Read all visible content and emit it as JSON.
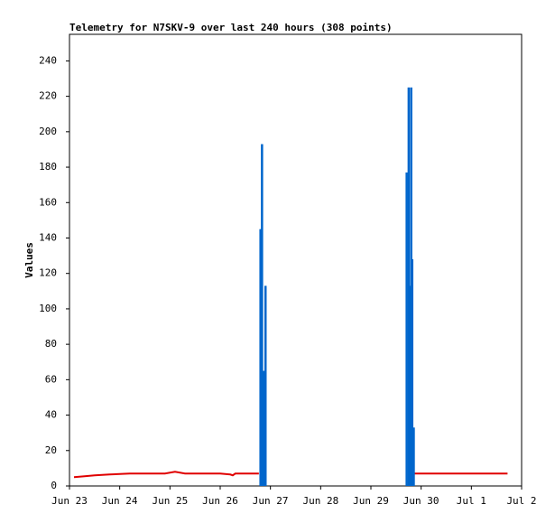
{
  "chart_data": {
    "type": "line",
    "title": "Telemetry for N7SKV-9 over last 240 hours (308 points)",
    "y_label": "Values",
    "xlim": [
      0,
      9
    ],
    "xticks": [
      {
        "value": 0,
        "label": "Jun 23"
      },
      {
        "value": 1,
        "label": "Jun 24"
      },
      {
        "value": 2,
        "label": "Jun 25"
      },
      {
        "value": 3,
        "label": "Jun 26"
      },
      {
        "value": 4,
        "label": "Jun 27"
      },
      {
        "value": 5,
        "label": "Jun 28"
      },
      {
        "value": 6,
        "label": "Jun 29"
      },
      {
        "value": 7,
        "label": "Jun 30"
      },
      {
        "value": 8,
        "label": "Jul 1"
      },
      {
        "value": 9,
        "label": "Jul 2"
      }
    ],
    "ylim": [
      0,
      255
    ],
    "yticks": [
      0,
      20,
      40,
      60,
      80,
      100,
      120,
      140,
      160,
      180,
      200,
      220,
      240
    ],
    "series": [
      {
        "type": "line",
        "color": "#e00000",
        "x": [
          0.09,
          0.3,
          0.5,
          0.8,
          1.2,
          1.5,
          1.9,
          2.1,
          2.3,
          2.8,
          3.0,
          3.2,
          3.25,
          3.3,
          3.77,
          5.0,
          6.85,
          8.72
        ],
        "values": [
          5,
          5.5,
          6,
          6.5,
          7,
          7,
          7,
          8,
          7,
          7,
          7,
          6.5,
          6,
          7,
          7,
          null,
          7,
          7
        ]
      },
      {
        "type": "bar",
        "color": "#0066cc",
        "x": [
          3.78,
          3.81,
          3.85,
          3.88,
          6.69,
          6.73,
          6.76,
          6.78,
          6.8,
          6.83
        ],
        "values": [
          145,
          193,
          65,
          113,
          177,
          225,
          113,
          225,
          128,
          33
        ]
      }
    ]
  }
}
